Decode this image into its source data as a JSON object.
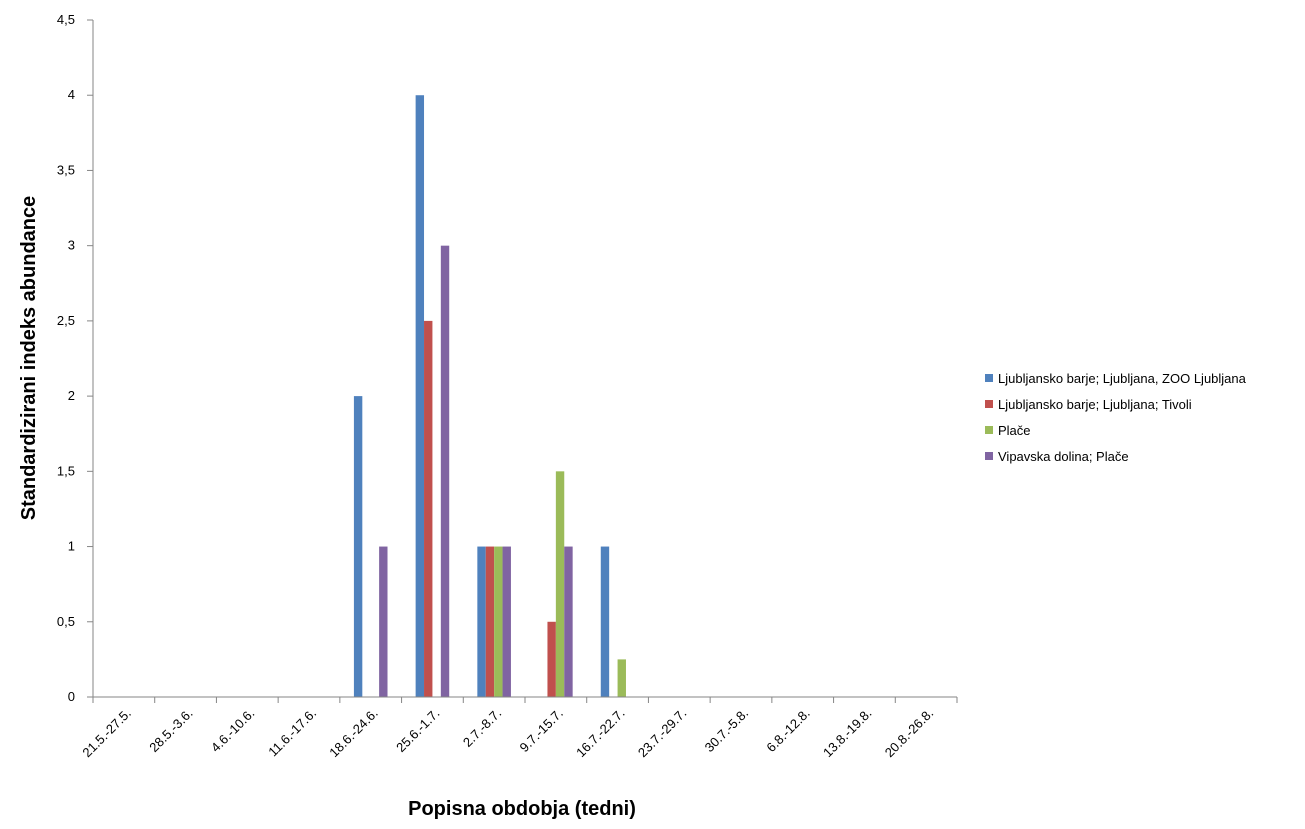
{
  "chart_data": {
    "type": "bar",
    "title": "",
    "xlabel": "Popisna obdobja  (tedni)",
    "ylabel": "Standardizirani indeks abundance",
    "ylim": [
      0,
      4.5
    ],
    "ytick_step": 0.5,
    "ytick_labels": [
      "0",
      "0,5",
      "1",
      "1,5",
      "2",
      "2,5",
      "3",
      "3,5",
      "4",
      "4,5"
    ],
    "categories": [
      "21.5.-27.5.",
      "28.5.-3.6.",
      "4.6.-10.6.",
      "11.6.-17.6.",
      "18.6.-24.6.",
      "25.6.-1.7.",
      "2.7.-8.7.",
      "9.7.-15.7.",
      "16.7.-22.7.",
      "23.7.-29.7.",
      "30.7.-5.8.",
      "6.8.-12.8.",
      "13.8.-19.8.",
      "20.8.-26.8."
    ],
    "grid": false,
    "legend_position": "right",
    "series": [
      {
        "name": "Ljubljansko barje; Ljubljana, ZOO Ljubljana",
        "color": "#4F81BD",
        "values": [
          0,
          0,
          0,
          0,
          2,
          4,
          1,
          0,
          1,
          0,
          0,
          0,
          0,
          0
        ]
      },
      {
        "name": "Ljubljansko barje; Ljubljana;  Tivoli",
        "color": "#C0504D",
        "values": [
          0,
          0,
          0,
          0,
          0,
          2.5,
          1,
          0.5,
          0,
          0,
          0,
          0,
          0,
          0
        ]
      },
      {
        "name": "Plače",
        "color": "#9BBB59",
        "values": [
          0,
          0,
          0,
          0,
          0,
          0,
          1,
          1.5,
          0.25,
          0,
          0,
          0,
          0,
          0
        ]
      },
      {
        "name": "Vipavska dolina; Plače",
        "color": "#8064A2",
        "values": [
          0,
          0,
          0,
          0,
          1,
          3,
          1,
          1,
          0,
          0,
          0,
          0,
          0,
          0
        ]
      }
    ]
  }
}
